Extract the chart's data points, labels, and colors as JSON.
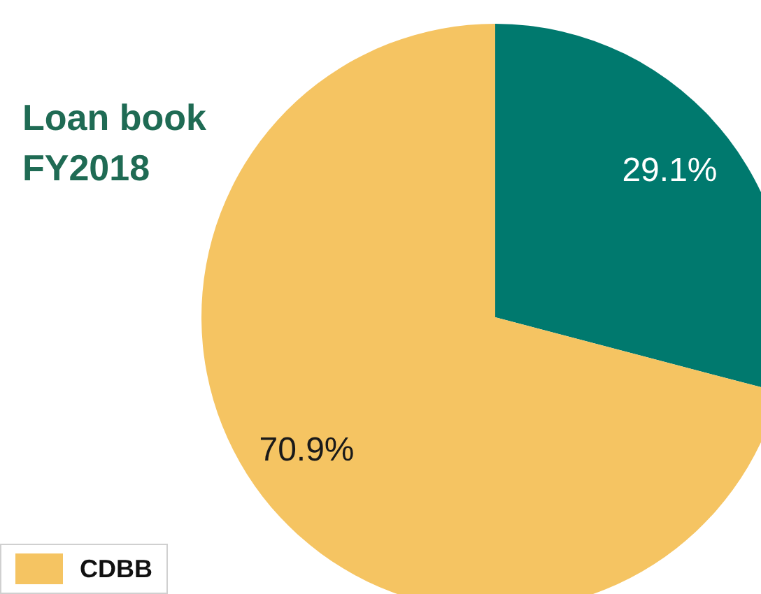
{
  "chart_data": {
    "type": "pie",
    "title": "Loan book\nFY2018",
    "categories": [
      null,
      "CDBB"
    ],
    "values": [
      29.1,
      70.9
    ],
    "colors": [
      "#00796e",
      "#f5c462"
    ],
    "value_labels": [
      "29.1%",
      "70.9%"
    ],
    "legend": "bottom left"
  }
}
